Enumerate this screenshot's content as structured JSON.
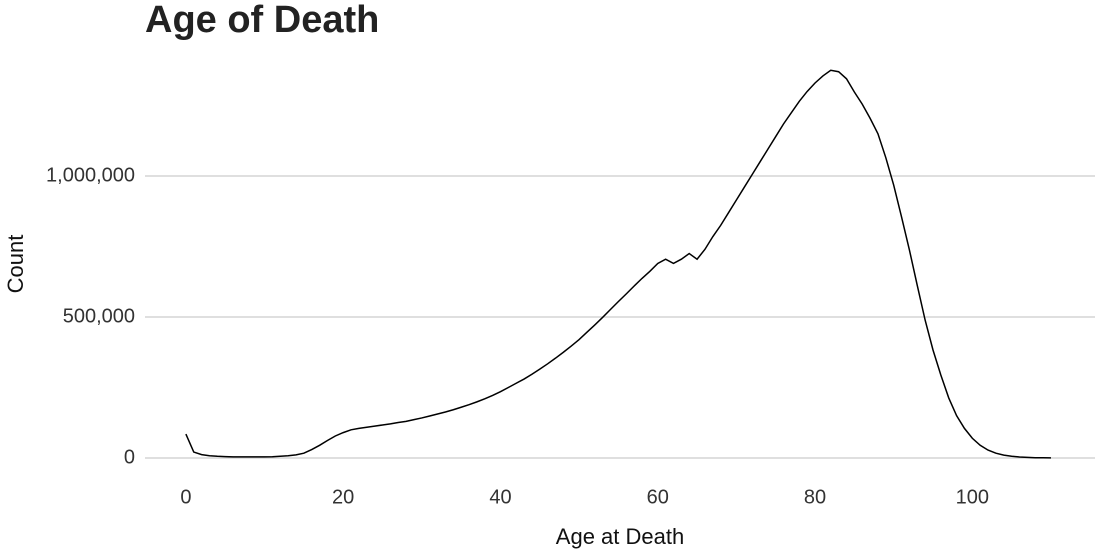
{
  "chart_data": {
    "type": "line",
    "title": "Age of Death",
    "x_label": "Age at Death",
    "y_label": "Count",
    "x": [
      0,
      1,
      2,
      3,
      4,
      5,
      6,
      7,
      8,
      9,
      10,
      11,
      12,
      13,
      14,
      15,
      16,
      17,
      18,
      19,
      20,
      21,
      22,
      23,
      24,
      25,
      26,
      27,
      28,
      29,
      30,
      31,
      32,
      33,
      34,
      35,
      36,
      37,
      38,
      39,
      40,
      41,
      42,
      43,
      44,
      45,
      46,
      47,
      48,
      49,
      50,
      51,
      52,
      53,
      54,
      55,
      56,
      57,
      58,
      59,
      60,
      61,
      62,
      63,
      64,
      65,
      66,
      67,
      68,
      69,
      70,
      71,
      72,
      73,
      74,
      75,
      76,
      77,
      78,
      79,
      80,
      81,
      82,
      83,
      84,
      85,
      86,
      87,
      88,
      89,
      90,
      91,
      92,
      93,
      94,
      95,
      96,
      97,
      98,
      99,
      100,
      101,
      102,
      103,
      104,
      105,
      106,
      107,
      108,
      109,
      110
    ],
    "series": [
      {
        "name": "Count",
        "color": "#000000",
        "values": [
          85000,
          21000,
          12000,
          8000,
          6000,
          5000,
          4000,
          4000,
          4000,
          4000,
          4000,
          4500,
          6000,
          8000,
          11000,
          17000,
          30000,
          45000,
          62000,
          78000,
          90000,
          100000,
          105000,
          109000,
          113000,
          117000,
          121000,
          126000,
          130000,
          136000,
          142000,
          149000,
          156000,
          163000,
          171000,
          180000,
          189000,
          199000,
          210000,
          222000,
          235000,
          250000,
          265000,
          280000,
          297000,
          315000,
          334000,
          354000,
          375000,
          397000,
          420000,
          446000,
          472000,
          499000,
          527000,
          555000,
          582000,
          610000,
          637000,
          662000,
          690000,
          705000,
          690000,
          705000,
          725000,
          705000,
          740000,
          785000,
          825000,
          870000,
          915000,
          960000,
          1005000,
          1050000,
          1095000,
          1140000,
          1185000,
          1225000,
          1265000,
          1300000,
          1330000,
          1355000,
          1375000,
          1370000,
          1345000,
          1298000,
          1255000,
          1205000,
          1150000,
          1065000,
          968000,
          855000,
          738000,
          612000,
          489000,
          383000,
          294000,
          213000,
          150000,
          105000,
          70000,
          45000,
          28000,
          17000,
          10000,
          6000,
          3500,
          2000,
          1000,
          600,
          300
        ]
      }
    ],
    "xlim": [
      -5.2,
      115.6
    ],
    "ylim": [
      -71000,
      1447000
    ],
    "xticks": [
      0,
      20,
      40,
      60,
      80,
      100
    ],
    "yticks": [
      0,
      {
        "value": 500000,
        "label": "500,000"
      },
      {
        "value": 1000000,
        "label": "1,000,000"
      }
    ],
    "grid": true
  }
}
